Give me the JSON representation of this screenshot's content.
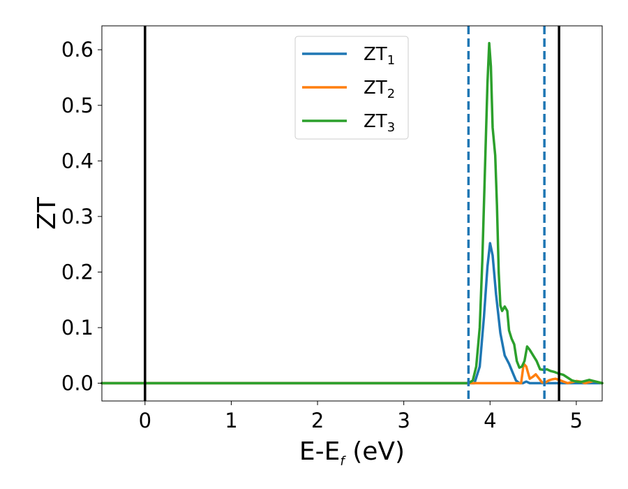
{
  "chart_data": {
    "type": "line",
    "xlabel": {
      "main": "E-E",
      "sub": "f",
      "suffix": " (eV)"
    },
    "ylabel": "ZT",
    "xlim": [
      -0.5,
      5.3
    ],
    "ylim": [
      -0.032,
      0.643
    ],
    "xticks": [
      0,
      1,
      2,
      3,
      4,
      5
    ],
    "xtick_labels": [
      "0",
      "1",
      "2",
      "3",
      "4",
      "5"
    ],
    "yticks": [
      0.0,
      0.1,
      0.2,
      0.3,
      0.4,
      0.5,
      0.6
    ],
    "ytick_labels": [
      "0.0",
      "0.1",
      "0.2",
      "0.3",
      "0.4",
      "0.5",
      "0.6"
    ],
    "grid": false,
    "legend_position": "top-center",
    "vlines": [
      {
        "x": 0.0,
        "style": "solid",
        "color": "#000000"
      },
      {
        "x": 4.8,
        "style": "solid",
        "color": "#000000"
      },
      {
        "x": 3.75,
        "style": "dashed",
        "color": "#1f77b4"
      },
      {
        "x": 4.63,
        "style": "dashed",
        "color": "#1f77b4"
      }
    ],
    "series": [
      {
        "name": "ZT",
        "name_sub": "1",
        "color": "#1f77b4",
        "x": [
          -0.5,
          3.75,
          3.82,
          3.88,
          3.93,
          3.97,
          4.0,
          4.03,
          4.07,
          4.12,
          4.17,
          4.22,
          4.26,
          4.3,
          4.34,
          4.38,
          4.42,
          4.46,
          4.5,
          5.3
        ],
        "y": [
          0.0,
          0.0,
          0.0,
          0.03,
          0.12,
          0.21,
          0.252,
          0.23,
          0.16,
          0.09,
          0.05,
          0.035,
          0.02,
          0.005,
          0.0,
          0.0,
          0.003,
          0.0,
          0.0,
          0.0
        ]
      },
      {
        "name": "ZT",
        "name_sub": "2",
        "color": "#ff7f0e",
        "x": [
          -0.5,
          4.36,
          4.39,
          4.42,
          4.46,
          4.5,
          4.53,
          4.57,
          4.6,
          4.63,
          4.68,
          4.72,
          4.76,
          4.8,
          4.85,
          4.9,
          4.95,
          5.0,
          5.05,
          5.1,
          5.15,
          5.2,
          5.25,
          5.3
        ],
        "y": [
          0.0,
          0.0,
          0.035,
          0.03,
          0.008,
          0.012,
          0.016,
          0.008,
          0.002,
          0.0,
          0.005,
          0.007,
          0.008,
          0.006,
          0.003,
          0.0,
          0.002,
          0.004,
          0.003,
          0.0,
          0.002,
          0.004,
          0.002,
          0.0
        ]
      },
      {
        "name": "ZT",
        "name_sub": "3",
        "color": "#2ca02c",
        "x": [
          -0.5,
          3.75,
          3.8,
          3.84,
          3.88,
          3.91,
          3.94,
          3.97,
          3.99,
          4.01,
          4.03,
          4.06,
          4.08,
          4.1,
          4.12,
          4.14,
          4.17,
          4.2,
          4.22,
          4.25,
          4.28,
          4.31,
          4.34,
          4.37,
          4.4,
          4.43,
          4.46,
          4.5,
          4.54,
          4.58,
          4.62,
          4.66,
          4.7,
          4.75,
          4.8,
          4.85,
          4.9,
          4.95,
          5.0,
          5.05,
          5.1,
          5.15,
          5.2,
          5.25,
          5.3
        ],
        "y": [
          0.0,
          0.0,
          0.005,
          0.03,
          0.1,
          0.22,
          0.38,
          0.54,
          0.612,
          0.57,
          0.46,
          0.41,
          0.32,
          0.2,
          0.14,
          0.13,
          0.138,
          0.13,
          0.095,
          0.08,
          0.07,
          0.04,
          0.028,
          0.03,
          0.04,
          0.066,
          0.06,
          0.05,
          0.04,
          0.025,
          0.024,
          0.025,
          0.022,
          0.02,
          0.017,
          0.015,
          0.01,
          0.005,
          0.003,
          0.002,
          0.004,
          0.006,
          0.004,
          0.002,
          0.0
        ]
      }
    ]
  }
}
